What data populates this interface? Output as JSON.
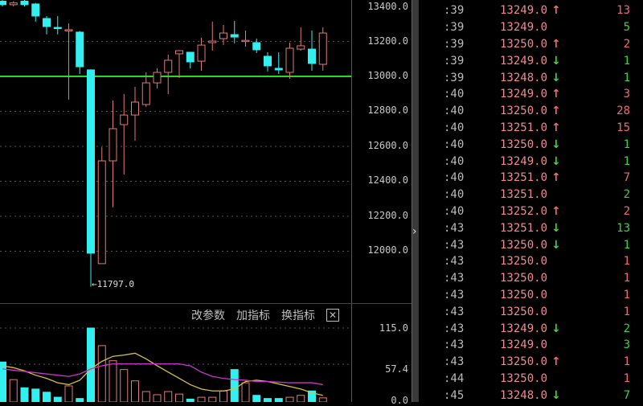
{
  "colors": {
    "up": "#e07a7a",
    "down": "#33f0f0",
    "ref_line": "#22dd22",
    "ma1": "#d8c040",
    "ma2": "#cc33cc",
    "grid": "#555555"
  },
  "price_axis": {
    "labels": [
      "13400.0",
      "13200.0",
      "13000.0",
      "12800.0",
      "12600.0",
      "12400.0",
      "12200.0",
      "12000.0"
    ]
  },
  "low_marker": "11797.0",
  "volume_panel": {
    "buttons": [
      "改参数",
      "加指标",
      "换指标"
    ],
    "close_icon": "close-icon",
    "axis_labels": [
      "115.0",
      "57.4",
      "0.0"
    ]
  },
  "chart_data": {
    "type": "candlestick",
    "ylim": [
      11797,
      13420
    ],
    "reference_line": 13000,
    "candles": [
      [
        13430,
        13440,
        13400,
        13410
      ],
      [
        13410,
        13430,
        13400,
        13420
      ],
      [
        13430,
        13440,
        13400,
        13410
      ],
      [
        13414,
        13420,
        13313,
        13345
      ],
      [
        13331,
        13345,
        13240,
        13285
      ],
      [
        13280,
        13345,
        13240,
        13278
      ],
      [
        13267,
        13303,
        12867,
        13267
      ],
      [
        13253,
        13260,
        13014,
        13055
      ],
      [
        13037,
        13040,
        11797,
        11989
      ],
      [
        11929,
        12595,
        11929,
        12517
      ],
      [
        12517,
        12862,
        12251,
        12701
      ],
      [
        12724,
        12899,
        12439,
        12779
      ],
      [
        12779,
        12940,
        12632,
        12853
      ],
      [
        12839,
        13023,
        12825,
        12963
      ],
      [
        12963,
        13046,
        12931,
        13023
      ],
      [
        13023,
        13124,
        12899,
        13092
      ],
      [
        13129,
        13150,
        12991,
        13147
      ],
      [
        13138,
        13140,
        13046,
        13083
      ],
      [
        13087,
        13221,
        13032,
        13179
      ],
      [
        13193,
        13313,
        13147,
        13202
      ],
      [
        13216,
        13294,
        13179,
        13248
      ],
      [
        13239,
        13317,
        13188,
        13225
      ],
      [
        13206,
        13262,
        13170,
        13206
      ],
      [
        13193,
        13216,
        13133,
        13152
      ],
      [
        13115,
        13138,
        13028,
        13060
      ],
      [
        13046,
        13138,
        13014,
        13037
      ],
      [
        13023,
        13193,
        12986,
        13161
      ],
      [
        13156,
        13280,
        13147,
        13175
      ],
      [
        13156,
        13262,
        13032,
        13074
      ],
      [
        13069,
        13280,
        13032,
        13248
      ]
    ],
    "volume": {
      "ylim": [
        0,
        115
      ],
      "values": [
        61,
        33,
        20,
        18,
        13,
        5,
        23,
        3,
        115,
        87,
        63,
        49,
        31,
        14,
        9,
        14,
        10,
        2,
        5,
        5,
        15,
        49,
        28,
        8,
        3,
        3,
        5,
        8,
        15,
        4
      ],
      "ma1": [
        55,
        52,
        47,
        40,
        35,
        28,
        25,
        32,
        50,
        62,
        70,
        72,
        75,
        66,
        55,
        45,
        35,
        25,
        18,
        15,
        15,
        18,
        30,
        32,
        30,
        26,
        22,
        18,
        12,
        8
      ],
      "ma2": [
        50,
        48,
        46,
        44,
        42,
        40,
        38,
        42,
        50,
        55,
        58,
        58,
        58,
        58,
        58,
        58,
        58,
        55,
        45,
        38,
        35,
        33,
        32,
        30,
        30,
        29,
        28,
        28,
        28,
        25
      ]
    }
  },
  "ticks": [
    {
      "time": ":39",
      "price": "13249.0",
      "dir": "up",
      "vol": "13",
      "vcls": "up"
    },
    {
      "time": ":39",
      "price": "13249.0",
      "dir": "",
      "vol": "5",
      "vcls": "dn"
    },
    {
      "time": ":39",
      "price": "13250.0",
      "dir": "up",
      "vol": "2",
      "vcls": "up"
    },
    {
      "time": ":39",
      "price": "13249.0",
      "dir": "down",
      "vol": "1",
      "vcls": "dn"
    },
    {
      "time": ":39",
      "price": "13248.0",
      "dir": "down",
      "vol": "1",
      "vcls": "dn"
    },
    {
      "time": ":40",
      "price": "13249.0",
      "dir": "up",
      "vol": "3",
      "vcls": "up"
    },
    {
      "time": ":40",
      "price": "13250.0",
      "dir": "up",
      "vol": "28",
      "vcls": "up"
    },
    {
      "time": ":40",
      "price": "13251.0",
      "dir": "up",
      "vol": "15",
      "vcls": "up"
    },
    {
      "time": ":40",
      "price": "13250.0",
      "dir": "down",
      "vol": "1",
      "vcls": "dn"
    },
    {
      "time": ":40",
      "price": "13249.0",
      "dir": "down",
      "vol": "1",
      "vcls": "dn"
    },
    {
      "time": ":40",
      "price": "13251.0",
      "dir": "up",
      "vol": "7",
      "vcls": "up"
    },
    {
      "time": ":40",
      "price": "13251.0",
      "dir": "",
      "vol": "2",
      "vcls": "dn"
    },
    {
      "time": ":40",
      "price": "13252.0",
      "dir": "up",
      "vol": "2",
      "vcls": "up"
    },
    {
      "time": ":43",
      "price": "13251.0",
      "dir": "down",
      "vol": "13",
      "vcls": "dn"
    },
    {
      "time": ":43",
      "price": "13250.0",
      "dir": "down",
      "vol": "1",
      "vcls": "dn"
    },
    {
      "time": ":43",
      "price": "13250.0",
      "dir": "",
      "vol": "1",
      "vcls": "up"
    },
    {
      "time": ":43",
      "price": "13250.0",
      "dir": "",
      "vol": "1",
      "vcls": "up"
    },
    {
      "time": ":43",
      "price": "13250.0",
      "dir": "",
      "vol": "1",
      "vcls": "up"
    },
    {
      "time": ":43",
      "price": "13250.0",
      "dir": "",
      "vol": "1",
      "vcls": "up"
    },
    {
      "time": ":43",
      "price": "13249.0",
      "dir": "down",
      "vol": "2",
      "vcls": "dn"
    },
    {
      "time": ":43",
      "price": "13249.0",
      "dir": "",
      "vol": "3",
      "vcls": "dn"
    },
    {
      "time": ":43",
      "price": "13250.0",
      "dir": "up",
      "vol": "1",
      "vcls": "up"
    },
    {
      "time": ":44",
      "price": "13250.0",
      "dir": "",
      "vol": "1",
      "vcls": "up"
    },
    {
      "time": ":45",
      "price": "13248.0",
      "dir": "down",
      "vol": "7",
      "vcls": "dn"
    }
  ]
}
